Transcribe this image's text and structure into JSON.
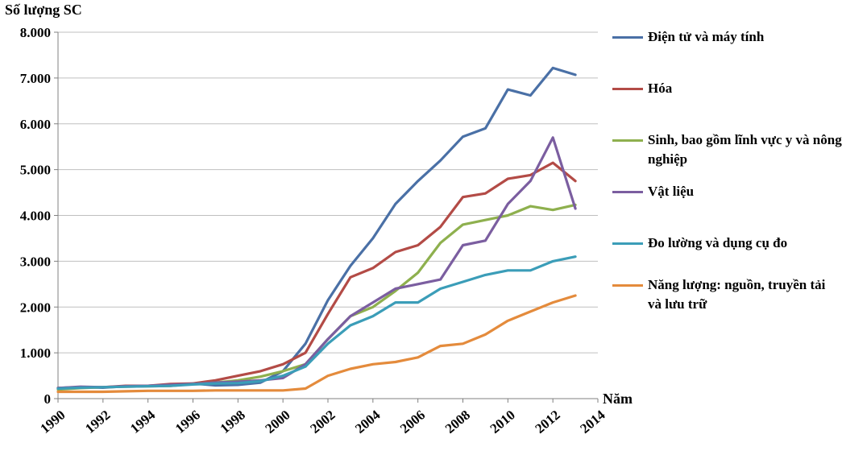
{
  "chart_data": {
    "type": "line",
    "ylabel": "Số lượng SC",
    "xlabel": "Năm",
    "xlim": [
      1990,
      2014
    ],
    "ylim": [
      0,
      8000
    ],
    "x_ticks": [
      1990,
      1992,
      1994,
      1996,
      1998,
      2000,
      2002,
      2004,
      2006,
      2008,
      2010,
      2012,
      2014
    ],
    "x_tick_labels": [
      "1990",
      "1992",
      "1994",
      "1996",
      "1998",
      "2000",
      "2002",
      "2004",
      "2006",
      "2008",
      "2010",
      "2012",
      "2014"
    ],
    "y_ticks": [
      0,
      1000,
      2000,
      3000,
      4000,
      5000,
      6000,
      7000,
      8000
    ],
    "y_tick_labels": [
      "0",
      "1.000",
      "2.000",
      "3.000",
      "4.000",
      "5.000",
      "6.000",
      "7.000",
      "8.000"
    ],
    "grid": "horizontal",
    "legend_position": "right",
    "x": [
      1990,
      1991,
      1992,
      1993,
      1994,
      1995,
      1996,
      1997,
      1998,
      1999,
      2000,
      2001,
      2002,
      2003,
      2004,
      2005,
      2006,
      2007,
      2008,
      2009,
      2010,
      2011,
      2012,
      2013
    ],
    "series": [
      {
        "name": "Điện tử và máy tính",
        "color": "#4a70a6",
        "values": [
          230,
          250,
          240,
          270,
          280,
          290,
          330,
          290,
          300,
          350,
          600,
          1200,
          2150,
          2900,
          3500,
          4250,
          4750,
          5200,
          5720,
          5900,
          6750,
          6620,
          7220,
          7070
        ]
      },
      {
        "name": "Hóa",
        "color": "#b34b46",
        "values": [
          230,
          250,
          250,
          280,
          280,
          320,
          330,
          400,
          500,
          600,
          750,
          1000,
          1850,
          2650,
          2850,
          3200,
          3350,
          3750,
          4400,
          4480,
          4800,
          4880,
          5150,
          4750
        ]
      },
      {
        "name": "Sinh, bao gồm lĩnh vực y và nông nghiệp",
        "color": "#8eb04e",
        "values": [
          200,
          230,
          250,
          260,
          270,
          280,
          320,
          350,
          400,
          480,
          600,
          750,
          1300,
          1800,
          2000,
          2350,
          2750,
          3400,
          3800,
          3900,
          4000,
          4200,
          4120,
          4230
        ]
      },
      {
        "name": "Vật liệu",
        "color": "#7b5ea0",
        "values": [
          230,
          260,
          250,
          270,
          280,
          300,
          320,
          350,
          370,
          400,
          450,
          750,
          1300,
          1800,
          2100,
          2400,
          2500,
          2600,
          3350,
          3450,
          4250,
          4750,
          5700,
          4150
        ]
      },
      {
        "name": "Đo lường và dụng cụ đo",
        "color": "#3b9db8",
        "values": [
          220,
          240,
          250,
          260,
          270,
          280,
          310,
          330,
          340,
          380,
          500,
          700,
          1200,
          1600,
          1800,
          2100,
          2100,
          2400,
          2550,
          2700,
          2800,
          2800,
          3000,
          3100
        ]
      },
      {
        "name": "Năng lượng: nguồn, truyền tải và lưu trữ",
        "color": "#e48b3c",
        "values": [
          150,
          150,
          150,
          160,
          170,
          170,
          170,
          180,
          180,
          180,
          180,
          220,
          500,
          650,
          750,
          800,
          900,
          1150,
          1200,
          1400,
          1700,
          1900,
          2100,
          2250
        ]
      }
    ]
  },
  "legend": {
    "items": [
      {
        "label": "Điện tử và máy tính",
        "color": "#4a70a6"
      },
      {
        "label": "Hóa",
        "color": "#b34b46"
      },
      {
        "label": "Sinh, bao gồm lĩnh vực y và nông nghiệp",
        "color": "#8eb04e"
      },
      {
        "label": "Vật liệu",
        "color": "#7b5ea0"
      },
      {
        "label": "Đo lường và dụng cụ đo",
        "color": "#3b9db8"
      },
      {
        "label": "Năng lượng: nguồn, truyền tải và lưu trữ",
        "color": "#e48b3c"
      }
    ]
  }
}
